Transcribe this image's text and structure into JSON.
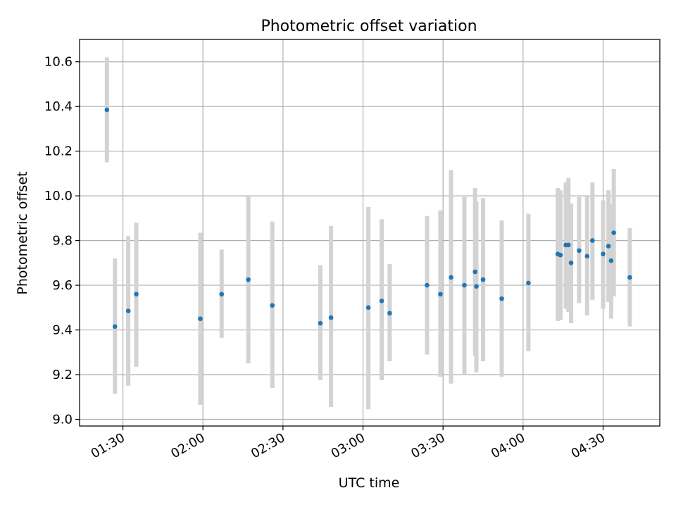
{
  "chart_data": {
    "type": "scatter",
    "title": "Photometric offset variation",
    "xlabel": "UTC time",
    "ylabel": "Photometric offset",
    "x_unit": "UTC time (HH:MM)",
    "xlim": [
      "01:13:45",
      "04:51:15"
    ],
    "ylim": [
      8.97,
      10.7
    ],
    "grid": true,
    "xticks": [
      "01:30",
      "02:00",
      "02:30",
      "03:00",
      "03:30",
      "04:00",
      "04:30"
    ],
    "yticks": [
      "9.0",
      "9.2",
      "9.4",
      "9.6",
      "9.8",
      "10.0",
      "10.2",
      "10.4",
      "10.6"
    ],
    "colors": {
      "marker": "#1f77b4",
      "errorbar": "#d3d3d3",
      "grid": "#b0b0b0"
    },
    "series": [
      {
        "points": [
          {
            "x": "01:24",
            "y": 10.385,
            "lo": 10.15,
            "hi": 10.62
          },
          {
            "x": "01:27",
            "y": 9.415,
            "lo": 9.115,
            "hi": 9.72
          },
          {
            "x": "01:32",
            "y": 9.485,
            "lo": 9.15,
            "hi": 9.82
          },
          {
            "x": "01:35",
            "y": 9.56,
            "lo": 9.235,
            "hi": 9.88
          },
          {
            "x": "01:59",
            "y": 9.45,
            "lo": 9.065,
            "hi": 9.835
          },
          {
            "x": "02:07",
            "y": 9.56,
            "lo": 9.365,
            "hi": 9.76
          },
          {
            "x": "02:17",
            "y": 9.625,
            "lo": 9.25,
            "hi": 10.0
          },
          {
            "x": "02:26",
            "y": 9.51,
            "lo": 9.14,
            "hi": 9.885
          },
          {
            "x": "02:44",
            "y": 9.43,
            "lo": 9.175,
            "hi": 9.69
          },
          {
            "x": "02:48",
            "y": 9.455,
            "lo": 9.055,
            "hi": 9.865
          },
          {
            "x": "03:02",
            "y": 9.5,
            "lo": 9.045,
            "hi": 9.95
          },
          {
            "x": "03:07",
            "y": 9.53,
            "lo": 9.175,
            "hi": 9.895
          },
          {
            "x": "03:10",
            "y": 9.475,
            "lo": 9.26,
            "hi": 9.695
          },
          {
            "x": "03:24",
            "y": 9.6,
            "lo": 9.29,
            "hi": 9.91
          },
          {
            "x": "03:29",
            "y": 9.56,
            "lo": 9.19,
            "hi": 9.935
          },
          {
            "x": "03:33",
            "y": 9.635,
            "lo": 9.16,
            "hi": 10.115
          },
          {
            "x": "03:38",
            "y": 9.6,
            "lo": 9.2,
            "hi": 9.995
          },
          {
            "x": "03:42",
            "y": 9.66,
            "lo": 9.285,
            "hi": 10.035
          },
          {
            "x": "03:42:30",
            "y": 9.595,
            "lo": 9.21,
            "hi": 9.975
          },
          {
            "x": "03:45",
            "y": 9.625,
            "lo": 9.26,
            "hi": 9.99
          },
          {
            "x": "03:52",
            "y": 9.54,
            "lo": 9.19,
            "hi": 9.89
          },
          {
            "x": "04:02",
            "y": 9.61,
            "lo": 9.305,
            "hi": 9.92
          },
          {
            "x": "04:13",
            "y": 9.74,
            "lo": 9.44,
            "hi": 10.035
          },
          {
            "x": "04:14",
            "y": 9.735,
            "lo": 9.445,
            "hi": 10.025
          },
          {
            "x": "04:16",
            "y": 9.78,
            "lo": 9.495,
            "hi": 10.06
          },
          {
            "x": "04:17",
            "y": 9.78,
            "lo": 9.48,
            "hi": 10.08
          },
          {
            "x": "04:18",
            "y": 9.7,
            "lo": 9.43,
            "hi": 9.965
          },
          {
            "x": "04:21",
            "y": 9.755,
            "lo": 9.52,
            "hi": 9.995
          },
          {
            "x": "04:24",
            "y": 9.73,
            "lo": 9.465,
            "hi": 10.0
          },
          {
            "x": "04:26",
            "y": 9.8,
            "lo": 9.535,
            "hi": 10.06
          },
          {
            "x": "04:30",
            "y": 9.74,
            "lo": 9.495,
            "hi": 9.98
          },
          {
            "x": "04:32",
            "y": 9.775,
            "lo": 9.525,
            "hi": 10.025
          },
          {
            "x": "04:33",
            "y": 9.71,
            "lo": 9.45,
            "hi": 9.965
          },
          {
            "x": "04:34",
            "y": 9.835,
            "lo": 9.55,
            "hi": 10.12
          },
          {
            "x": "04:40",
            "y": 9.635,
            "lo": 9.415,
            "hi": 9.855
          }
        ]
      }
    ]
  }
}
